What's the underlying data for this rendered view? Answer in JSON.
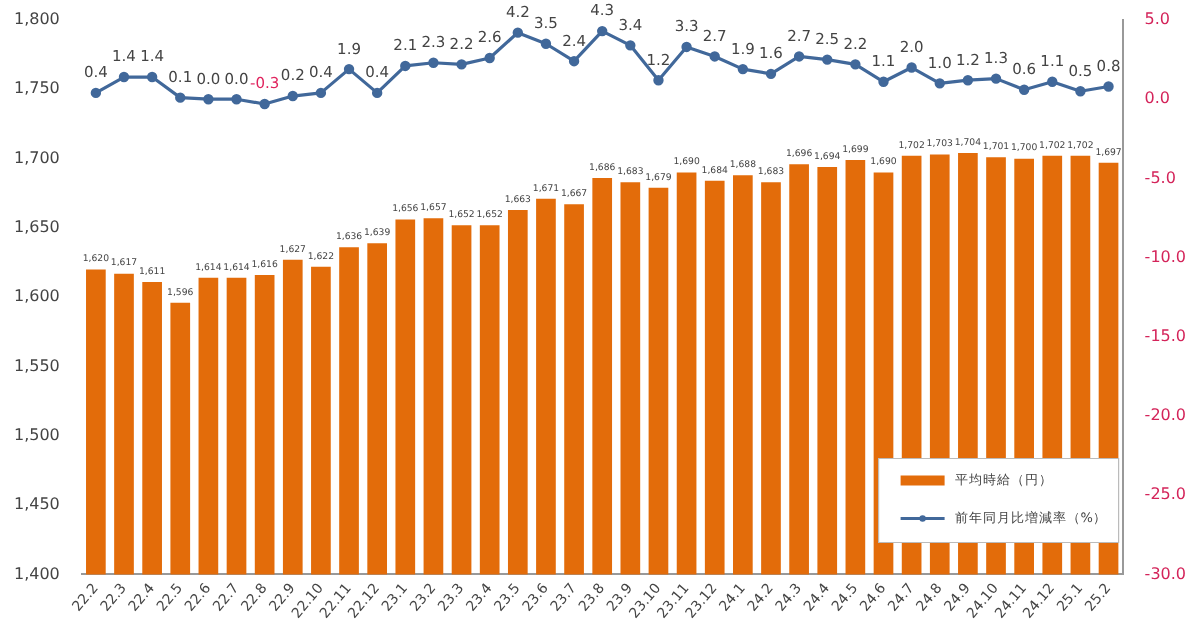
{
  "chart_data": {
    "type": "bar",
    "categories": [
      "22.2",
      "22.3",
      "22.4",
      "22.5",
      "22.6",
      "22.7",
      "22.8",
      "22.9",
      "22.10",
      "22.11",
      "22.12",
      "23.1",
      "23.2",
      "23.3",
      "23.4",
      "23.5",
      "23.6",
      "23.7",
      "23.8",
      "23.9",
      "23.10",
      "23.11",
      "23.12",
      "24.1",
      "24.2",
      "24.3",
      "24.4",
      "24.5",
      "24.6",
      "24.7",
      "24.8",
      "24.9",
      "24.10",
      "24.11",
      "24.12",
      "25.1",
      "25.2"
    ],
    "series": [
      {
        "name": "平均時給（円）",
        "color": "#e36c0a",
        "values": [
          1620,
          1617,
          1611,
          1596,
          1614,
          1614,
          1616,
          1627,
          1622,
          1636,
          1639,
          1656,
          1657,
          1652,
          1652,
          1663,
          1671,
          1667,
          1686,
          1683,
          1679,
          1690,
          1684,
          1688,
          1683,
          1696,
          1694,
          1699,
          1690,
          1702,
          1703,
          1704,
          1701,
          1700,
          1702,
          1702,
          1697
        ],
        "value_labels": [
          "1,620",
          "1,617",
          "1,611",
          "1,596",
          "1,614",
          "1,614",
          "1,616",
          "1,627",
          "1,622",
          "1,636",
          "1,639",
          "1,656",
          "1,657",
          "1,652",
          "1,652",
          "1,663",
          "1,671",
          "1,667",
          "1,686",
          "1,683",
          "1,679",
          "1,690",
          "1,684",
          "1,688",
          "1,683",
          "1,696",
          "1,694",
          "1,699",
          "1,690",
          "1,702",
          "1,703",
          "1,704",
          "1,701",
          "1,700",
          "1,702",
          "1,702",
          "1,697"
        ]
      },
      {
        "name": "前年同月比増減率（%）",
        "type": "line",
        "axis": "y2",
        "color": "#41689a",
        "marker": "circle",
        "line_style": "solid",
        "values": [
          0.4,
          1.4,
          1.4,
          0.1,
          0.0,
          0.0,
          -0.3,
          0.2,
          0.4,
          1.9,
          0.4,
          2.1,
          2.3,
          2.2,
          2.6,
          4.2,
          3.5,
          2.4,
          4.3,
          3.4,
          1.2,
          3.3,
          2.7,
          1.9,
          1.6,
          2.7,
          2.5,
          2.2,
          1.1,
          2.0,
          1.0,
          1.2,
          1.3,
          0.6,
          1.1,
          0.5,
          0.8
        ],
        "value_labels": [
          "0.4",
          "1.4",
          "1.4",
          "0.1",
          "0.0",
          "0.0",
          "-0.3",
          "0.2",
          "0.4",
          "1.9",
          "0.4",
          "2.1",
          "2.3",
          "2.2",
          "2.6",
          "4.2",
          "3.5",
          "2.4",
          "4.3",
          "3.4",
          "1.2",
          "3.3",
          "2.7",
          "1.9",
          "1.6",
          "2.7",
          "2.5",
          "2.2",
          "1.1",
          "2.0",
          "1.0",
          "1.2",
          "1.3",
          "0.6",
          "1.1",
          "0.5",
          "0.8"
        ]
      }
    ],
    "ylim": [
      1400,
      1800
    ],
    "yticks": [
      {
        "value": 1400,
        "label": "1,400"
      },
      {
        "value": 1450,
        "label": "1,450"
      },
      {
        "value": 1500,
        "label": "1,500"
      },
      {
        "value": 1550,
        "label": "1,550"
      },
      {
        "value": 1600,
        "label": "1,600"
      },
      {
        "value": 1650,
        "label": "1,650"
      },
      {
        "value": 1700,
        "label": "1,700"
      },
      {
        "value": 1750,
        "label": "1,750"
      },
      {
        "value": 1800,
        "label": "1,800"
      }
    ],
    "y2lim": [
      -30,
      5
    ],
    "y2ticks": [
      {
        "value": -30,
        "label": "-30.0"
      },
      {
        "value": -25,
        "label": "-25.0"
      },
      {
        "value": -20,
        "label": "-20.0"
      },
      {
        "value": -15,
        "label": "-15.0"
      },
      {
        "value": -10,
        "label": "-10.0"
      },
      {
        "value": -5,
        "label": "-5.0"
      },
      {
        "value": 0,
        "label": "0.0"
      },
      {
        "value": 5,
        "label": "5.0"
      }
    ],
    "grid": false,
    "legend": "bottom right"
  }
}
